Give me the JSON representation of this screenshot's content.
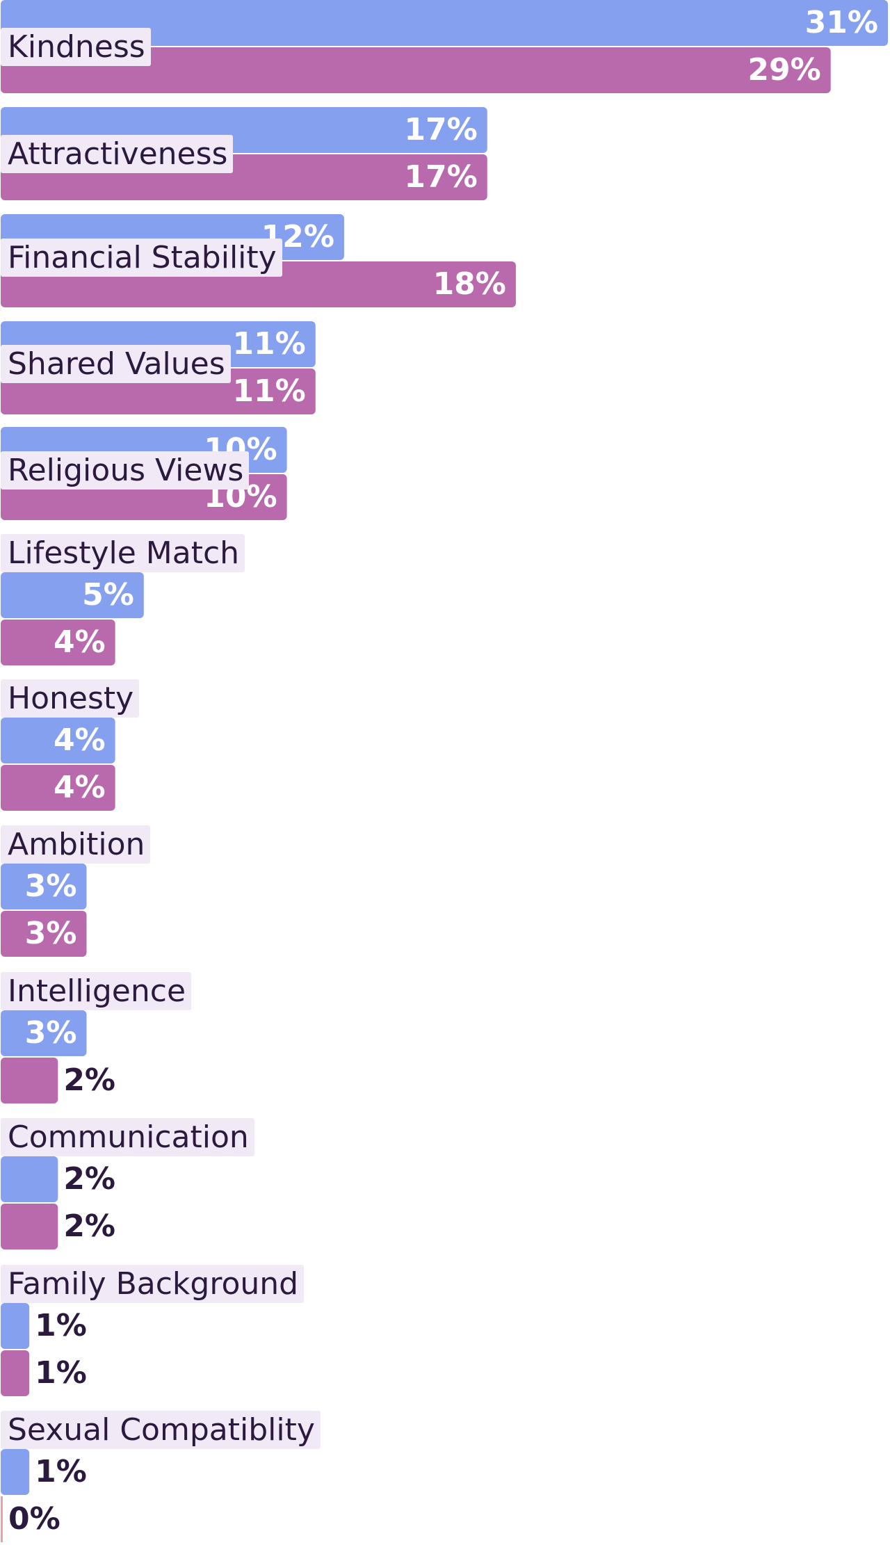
{
  "chart_data": {
    "type": "bar",
    "orientation": "horizontal",
    "title": "",
    "xlabel": "",
    "ylabel": "",
    "xlim": [
      0,
      31
    ],
    "grid": false,
    "legend": "none",
    "categories": [
      "Kindness",
      "Attractiveness",
      "Financial Stability",
      "Shared Values",
      "Religious Views",
      "Lifestyle Match",
      "Honesty",
      "Ambition",
      "Intelligence",
      "Communication",
      "Family Background",
      "Sexual Compatiblity"
    ],
    "series": [
      {
        "color": "#84a0ef",
        "values": [
          31,
          17,
          12,
          11,
          10,
          5,
          4,
          3,
          3,
          2,
          1,
          1
        ],
        "labels": [
          "31%",
          "17%",
          "12%",
          "11%",
          "10%",
          "5%",
          "4%",
          "3%",
          "3%",
          "2%",
          "1%",
          "1%"
        ]
      },
      {
        "color": "#b96aad",
        "values": [
          29,
          17,
          18,
          11,
          10,
          4,
          4,
          3,
          2,
          2,
          1,
          0
        ],
        "labels": [
          "29%",
          "17%",
          "18%",
          "11%",
          "10%",
          "4%",
          "4%",
          "3%",
          "2%",
          "2%",
          "1%",
          "0%"
        ]
      }
    ]
  }
}
